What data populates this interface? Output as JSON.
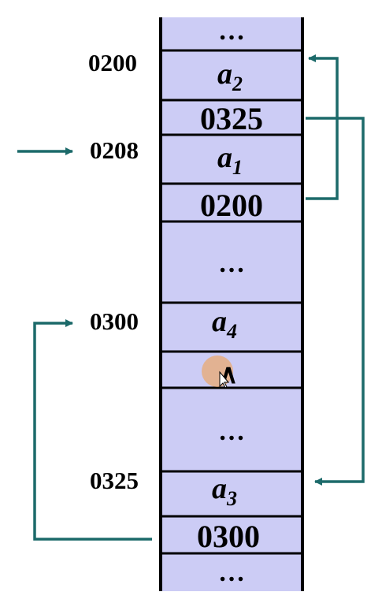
{
  "memory": {
    "cells": [
      {
        "kind": "dots",
        "text": "…"
      },
      {
        "kind": "var",
        "base": "a",
        "sub": "2"
      },
      {
        "kind": "value",
        "text": "0325"
      },
      {
        "kind": "var",
        "base": "a",
        "sub": "1"
      },
      {
        "kind": "value",
        "text": "0200"
      },
      {
        "kind": "dots",
        "text": "…"
      },
      {
        "kind": "var",
        "base": "a",
        "sub": "4"
      },
      {
        "kind": "null",
        "symbol": "∧"
      },
      {
        "kind": "dots",
        "text": "…"
      },
      {
        "kind": "var",
        "base": "a",
        "sub": "3"
      },
      {
        "kind": "value",
        "text": "0300"
      },
      {
        "kind": "dots",
        "text": "…"
      }
    ]
  },
  "addresses": {
    "addr_0200": "0200",
    "addr_0208": "0208",
    "addr_0300": "0300",
    "addr_0325": "0325"
  },
  "colors": {
    "cell_fill": "#ccccf5",
    "arrow": "#1c6a6a",
    "cursor_highlight": "#f0a050"
  }
}
